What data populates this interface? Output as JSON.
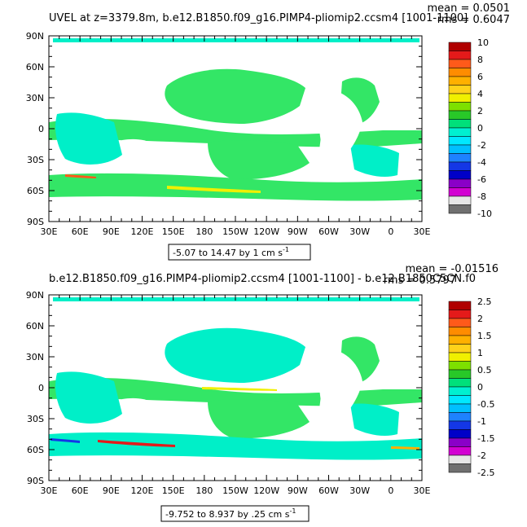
{
  "panels": [
    {
      "title": "UVEL at z=3379.8m, b.e12.B1850.f09_g16.PIMP4-pliomip2.ccsm4 [1001-1100]",
      "mean_text": "mean = 0.0501",
      "rms_text": "rms = 0.6047",
      "range_text": "-5.07 to 14.47 by 1 cm s",
      "range_unit_sup": "-1",
      "colorbar_labels": [
        "10",
        "8",
        "6",
        "4",
        "2",
        "0",
        "-2",
        "-4",
        "-6",
        "-8",
        "-10"
      ]
    },
    {
      "title": "b.e12.B1850.f09_g16.PIMP4-pliomip2.ccsm4 [1001-1100] - b.e12.B1850C5CN.f0",
      "mean_text": "mean = -0.01516",
      "rms_text": "rms = 0.5797",
      "range_text": "-9.752 to 8.937 by .25 cm s",
      "range_unit_sup": "-1",
      "colorbar_labels": [
        "2.5",
        "2",
        "1.5",
        "1",
        "0.5",
        "0",
        "-0.5",
        "-1",
        "-1.5",
        "-2",
        "-2.5"
      ]
    }
  ],
  "axes": {
    "lat_labels": [
      "90N",
      "60N",
      "30N",
      "0",
      "30S",
      "60S",
      "90S"
    ],
    "lon_labels": [
      "30E",
      "60E",
      "90E",
      "120E",
      "150E",
      "180",
      "150W",
      "120W",
      "90W",
      "60W",
      "30W",
      "0",
      "30E"
    ]
  },
  "colors": {
    "colorbar": [
      "#b00000",
      "#e41a1a",
      "#ff5a1a",
      "#ff8c00",
      "#ffb000",
      "#ffd21a",
      "#f0f000",
      "#7de000",
      "#28c828",
      "#00e07a",
      "#00f0d0",
      "#00e8ff",
      "#00bfff",
      "#1e82ff",
      "#1437e6",
      "#0000c8",
      "#8a00c8",
      "#d200d2",
      "#e6e6e6",
      "#707070"
    ],
    "ocean_dominant": "#33e666",
    "ocean_secondary": "#00efc8"
  },
  "chart_data": [
    {
      "type": "heatmap",
      "title": "UVEL at z=3379.8m, b.e12.B1850.f09_g16.PIMP4-pliomip2.ccsm4 [1001-1100]",
      "x_axis": "longitude 30E to 30E (360 deg)",
      "y_axis": "latitude 90S to 90N",
      "mean": 0.0501,
      "rms": 0.6047,
      "data_min": -5.07,
      "data_max": 14.47,
      "contour_interval": 1,
      "units": "cm s-1",
      "colorbar_levels": [
        10,
        8,
        6,
        4,
        2,
        0,
        -2,
        -4,
        -6,
        -8,
        -10
      ]
    },
    {
      "type": "heatmap",
      "title": "b.e12.B1850.f09_g16.PIMP4-pliomip2.ccsm4 [1001-1100] - b.e12.B1850C5CN.f0",
      "x_axis": "longitude 30E to 30E (360 deg)",
      "y_axis": "latitude 90S to 90N",
      "mean": -0.01516,
      "rms": 0.5797,
      "data_min": -9.752,
      "data_max": 8.937,
      "contour_interval": 0.25,
      "units": "cm s-1",
      "colorbar_levels": [
        2.5,
        2,
        1.5,
        1,
        0.5,
        0,
        -0.5,
        -1,
        -1.5,
        -2,
        -2.5
      ]
    }
  ]
}
